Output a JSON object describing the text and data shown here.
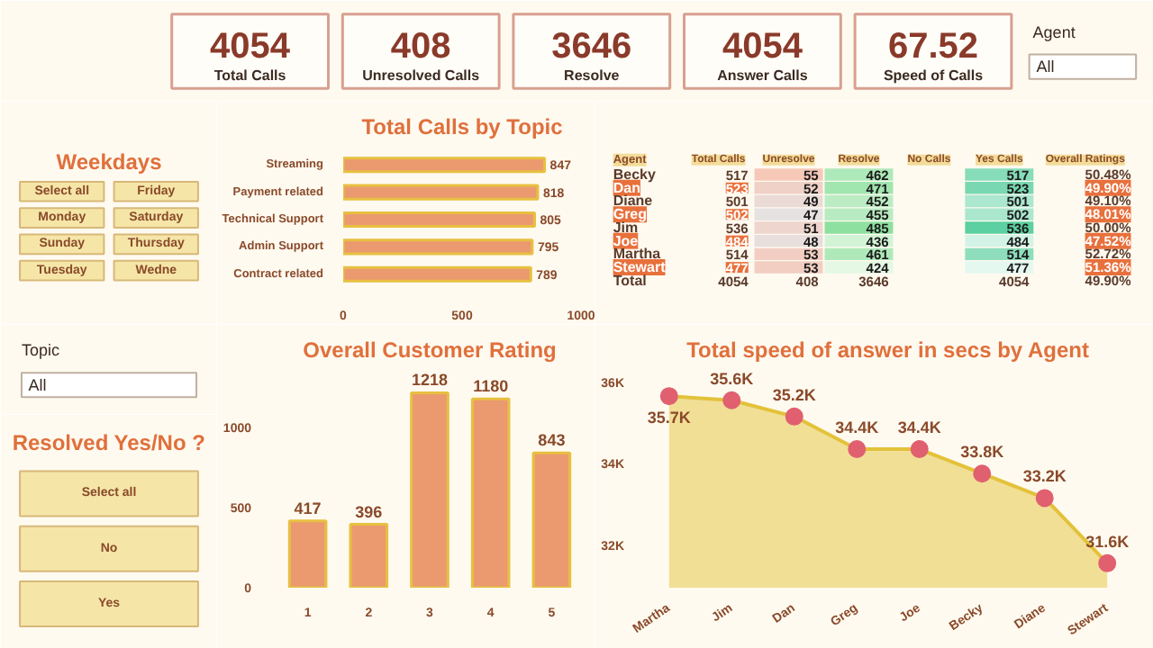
{
  "chart_data": [
    {
      "type": "other",
      "annotations": [
        "4054",
        "Total Calls",
        "408",
        "Unresolved Calls",
        "3646",
        "Resolve",
        "4054",
        "Answer Calls",
        "67.52",
        "Speed of Calls",
        "Agent",
        "All"
      ]
    },
    {
      "type": "other",
      "title": "Weekdays",
      "annotations": [
        "Select all",
        "Friday",
        "Monday",
        "Saturday",
        "Sunday",
        "Thursday",
        "Tuesday",
        "Wedne"
      ]
    },
    {
      "type": "bar",
      "orientation": "horizontal",
      "title": "Total Calls by Topic",
      "categories": [
        "Streaming",
        "Payment related",
        "Technical Support",
        "Admin Support",
        "Contract related"
      ],
      "values": [
        847,
        818,
        805,
        795,
        789
      ],
      "color": "#eb9a70",
      "xlim": [
        0,
        1000
      ],
      "xticks": [
        0,
        500,
        1000
      ],
      "data_labels": true
    },
    {
      "type": "heatmap",
      "ylabel": "Agent",
      "categories": [
        "Total Calls",
        "Unresolve",
        "Resolve",
        "No Calls",
        "Yes Calls",
        "Overall Ratings"
      ],
      "y_categories": [
        "Becky",
        "Dan",
        "Diane",
        "Greg",
        "Jim",
        "Joe",
        "Martha",
        "Stewart",
        "Total"
      ],
      "cells": [
        [
          517,
          55,
          462,
          null,
          517,
          50.48
        ],
        [
          523,
          52,
          471,
          null,
          523,
          49.9
        ],
        [
          501,
          49,
          452,
          null,
          501,
          49.1
        ],
        [
          502,
          47,
          455,
          null,
          502,
          48.01
        ],
        [
          536,
          51,
          485,
          null,
          536,
          50.0
        ],
        [
          484,
          48,
          436,
          null,
          484,
          47.52
        ],
        [
          514,
          53,
          461,
          null,
          514,
          52.72
        ],
        [
          477,
          53,
          424,
          null,
          477,
          51.36
        ],
        [
          4054,
          408,
          3646,
          null,
          4054,
          49.9
        ]
      ],
      "cell_labels": [
        [
          "517",
          "55",
          "462",
          null,
          "517",
          "50.48%"
        ],
        [
          "523",
          "52",
          "471",
          null,
          "523",
          "49.90%"
        ],
        [
          "501",
          "49",
          "452",
          null,
          "501",
          "49.10%"
        ],
        [
          "502",
          "47",
          "455",
          null,
          "502",
          "48.01%"
        ],
        [
          "536",
          "51",
          "485",
          null,
          "536",
          "50.00%"
        ],
        [
          "484",
          "48",
          "436",
          null,
          "484",
          "47.52%"
        ],
        [
          "514",
          "53",
          "461",
          null,
          "514",
          "52.72%"
        ],
        [
          "477",
          "53",
          "424",
          null,
          "477",
          "51.36%"
        ],
        [
          "4054",
          "408",
          "3646",
          null,
          "4054",
          "49.90%"
        ]
      ]
    },
    {
      "type": "other",
      "title": "Topic",
      "annotations": [
        "All"
      ]
    },
    {
      "type": "other",
      "title": "Resolved Yes/No ?",
      "annotations": [
        "Select all",
        "No",
        "Yes"
      ]
    },
    {
      "type": "bar",
      "title": "Overall Customer Rating",
      "categories": [
        "1",
        "2",
        "3",
        "4",
        "5"
      ],
      "values": [
        417,
        396,
        1218,
        1180,
        843
      ],
      "color": "#eb9a70",
      "ylim": [
        0,
        1350
      ],
      "yticks": [
        0,
        500,
        1000
      ],
      "data_labels": true
    },
    {
      "type": "area",
      "title": "Total speed of answer in secs by Agent",
      "categories": [
        "Martha",
        "Jim",
        "Dan",
        "Greg",
        "Joe",
        "Becky",
        "Diane",
        "Stewart"
      ],
      "values": [
        35700,
        35600,
        35200,
        34400,
        34400,
        33800,
        33200,
        31600
      ],
      "value_labels": [
        "35.7K",
        "35.6K",
        "35.2K",
        "34.4K",
        "34.4K",
        "33.8K",
        "33.2K",
        "31.6K"
      ],
      "color": "#f0dc8c",
      "marker": "circle",
      "ylim": [
        31000,
        36300
      ],
      "yticks": [
        {
          "value": 32000,
          "label": "32K"
        },
        {
          "value": 34000,
          "label": "34K"
        },
        {
          "value": 36000,
          "label": "36K"
        }
      ]
    }
  ]
}
